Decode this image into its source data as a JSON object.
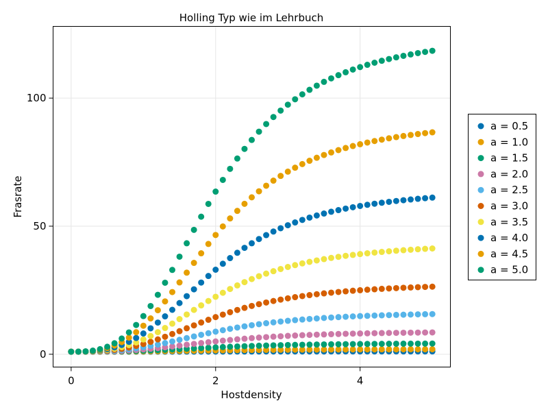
{
  "chart_data": {
    "type": "scatter",
    "title": "Holling Typ wie im Lehrbuch",
    "xlabel": "Hostdensity",
    "ylabel": "Frasrate",
    "xlim": [
      -0.25,
      5.25
    ],
    "ylim": [
      -5,
      128
    ],
    "xticks": [
      0,
      2,
      4
    ],
    "yticks": [
      0,
      50,
      100
    ],
    "grid": true,
    "legend_position": "right",
    "hill_exponent": 3,
    "half_saturation": 2,
    "x_start": 0,
    "x_step": 0.1,
    "x_count": 51,
    "series": [
      {
        "name": "a = 0.5",
        "color": "#0072B2",
        "a": 0.5
      },
      {
        "name": "a = 1.0",
        "color": "#E69F00",
        "a": 1.0
      },
      {
        "name": "a = 1.5",
        "color": "#009E73",
        "a": 1.5
      },
      {
        "name": "a = 2.0",
        "color": "#CC79A7",
        "a": 2.0
      },
      {
        "name": "a = 2.5",
        "color": "#56B4E9",
        "a": 2.5
      },
      {
        "name": "a = 3.0",
        "color": "#D55E00",
        "a": 3.0
      },
      {
        "name": "a = 3.5",
        "color": "#F0E442",
        "a": 3.5
      },
      {
        "name": "a = 4.0",
        "color": "#0072B2",
        "a": 4.0
      },
      {
        "name": "a = 4.5",
        "color": "#E69F00",
        "a": 4.5
      },
      {
        "name": "a = 5.0",
        "color": "#009E73",
        "a": 5.0
      }
    ]
  }
}
